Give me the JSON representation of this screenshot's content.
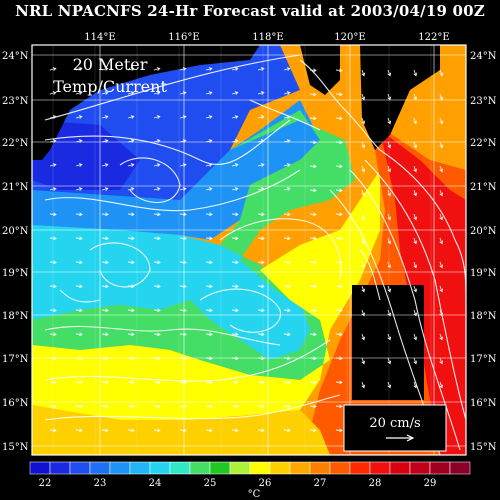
{
  "title": "NRL NPACNFS 24-Hr Forecast valid at 2003/04/19 00Z",
  "panel_label": [
    "20 Meter",
    "Temp/Current"
  ],
  "longitudes": [
    "114°E",
    "116°E",
    "118°E",
    "120°E",
    "122°E"
  ],
  "latitudes": [
    "24°N",
    "23°N",
    "22°N",
    "21°N",
    "20°N",
    "19°N",
    "18°N",
    "17°N",
    "16°N",
    "15°N"
  ],
  "scale_vector_label": "20 cm/s",
  "colorbar": {
    "unit": "°C",
    "ticks": [
      "22",
      "23",
      "24",
      "25",
      "26",
      "27",
      "28",
      "29"
    ],
    "colors": [
      "#1010d0",
      "#1a2ae0",
      "#1f4df0",
      "#1f70f5",
      "#1f93f5",
      "#20b5f5",
      "#25d5f0",
      "#33e8c8",
      "#44dd66",
      "#22c822",
      "#aef03a",
      "#ffff00",
      "#ffd000",
      "#ffa800",
      "#ff8000",
      "#ff5a00",
      "#ff2a00",
      "#f01010",
      "#d80010",
      "#c00018",
      "#a00020",
      "#8a0028"
    ]
  }
}
